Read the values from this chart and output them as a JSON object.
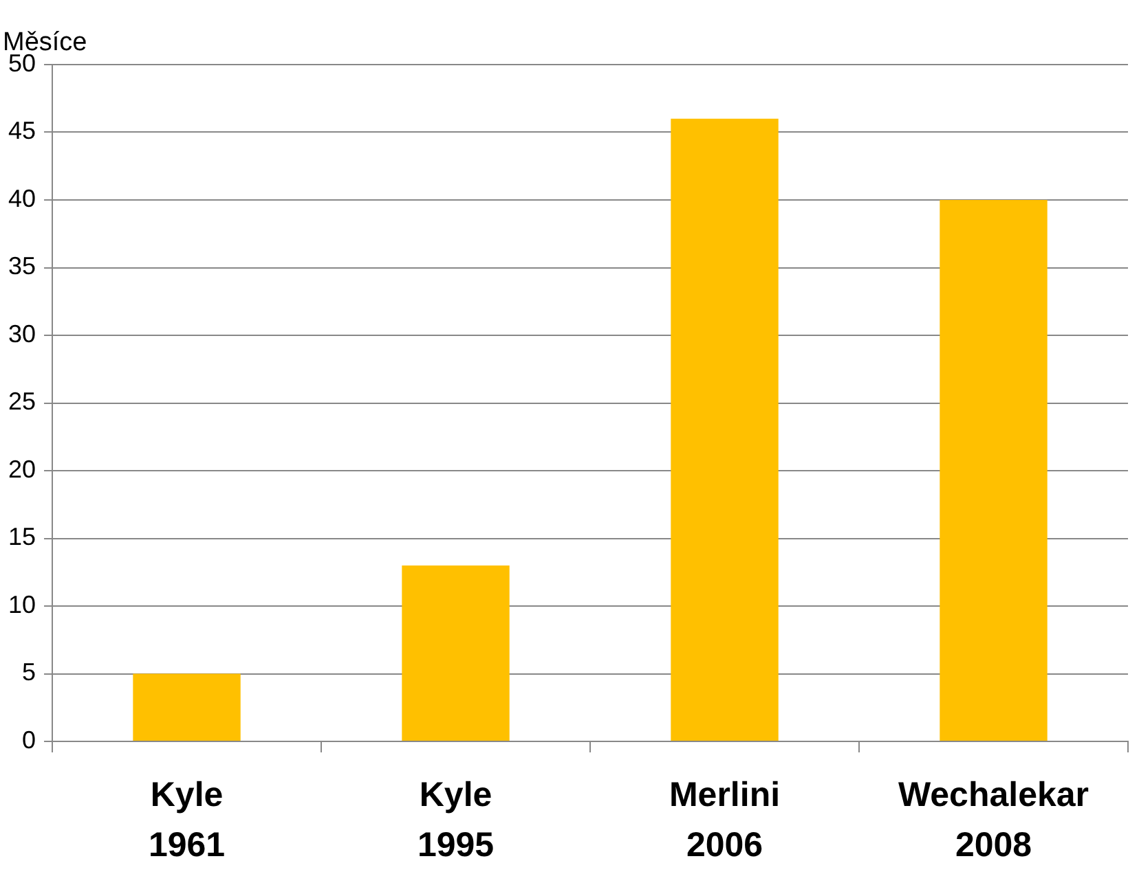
{
  "chart_data": {
    "type": "bar",
    "ylabel": "Měsíce",
    "categories": [
      "Kyle\n1961",
      "Kyle\n1995",
      "Merlini\n2006",
      "Wechalekar\n2008"
    ],
    "values": [
      5,
      13,
      46,
      40
    ],
    "color": "#ffc000",
    "ylim": [
      0,
      50
    ],
    "yticks": [
      0,
      5,
      10,
      15,
      20,
      25,
      30,
      35,
      40,
      45,
      50
    ],
    "grid": "y",
    "legend": false
  }
}
